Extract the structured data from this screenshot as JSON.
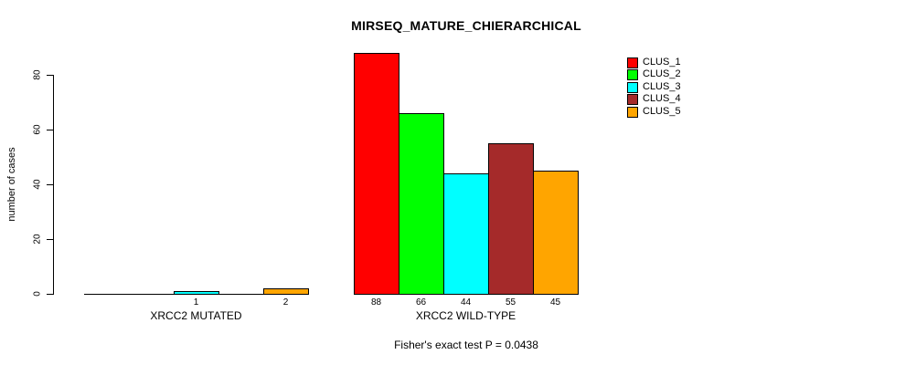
{
  "window": {
    "background": "#FFFFFF",
    "foreground": "#000000"
  },
  "chart_data": {
    "type": "bar",
    "title": "MIRSEQ_MATURE_CHIERARCHICAL",
    "ylabel": "number of cases",
    "xlabel": "",
    "ylim": [
      0,
      88
    ],
    "yticks": [
      0,
      20,
      40,
      60,
      80
    ],
    "grid": false,
    "legend_position": "top-right",
    "categories": [
      "XRCC2 MUTATED",
      "XRCC2 WILD-TYPE"
    ],
    "series": [
      {
        "name": "CLUS_1",
        "color": "#FF0000",
        "values": [
          0,
          88
        ]
      },
      {
        "name": "CLUS_2",
        "color": "#00FF00",
        "values": [
          0,
          66
        ]
      },
      {
        "name": "CLUS_3",
        "color": "#00FFFF",
        "values": [
          1,
          44
        ]
      },
      {
        "name": "CLUS_4",
        "color": "#A52A2A",
        "values": [
          0,
          55
        ]
      },
      {
        "name": "CLUS_5",
        "color": "#FFA500",
        "values": [
          2,
          45
        ]
      }
    ],
    "value_labels": {
      "shown": true,
      "hide_zeros": true
    },
    "footer": "Fisher's exact test P = 0.0438"
  }
}
